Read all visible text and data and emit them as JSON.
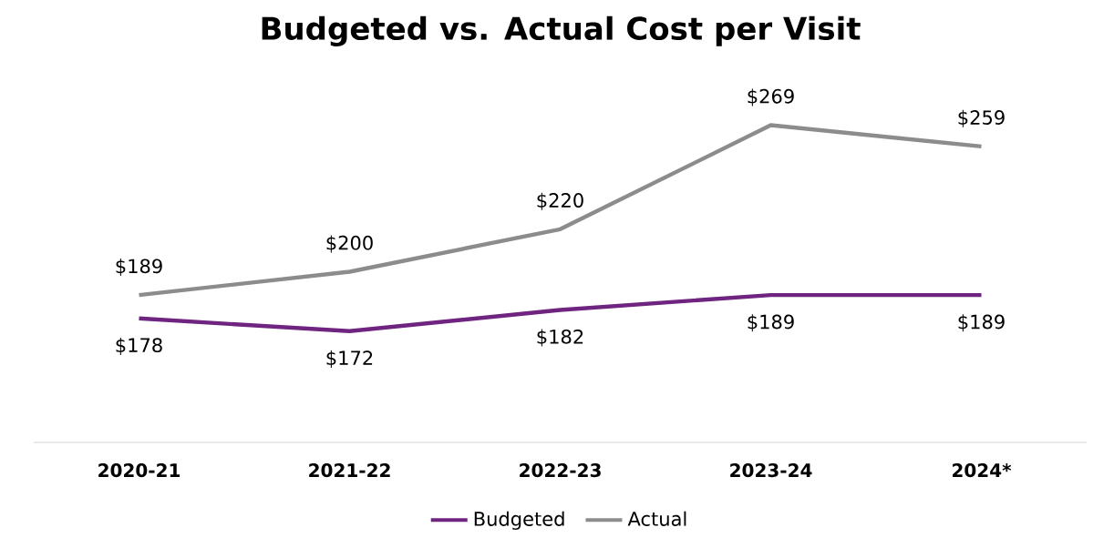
{
  "chart_data": {
    "type": "line",
    "title": "Budgeted vs. Actual Cost per Visit",
    "categories": [
      "2020-21",
      "2021-22",
      "2022-23",
      "2023-24",
      "2024*"
    ],
    "series": [
      {
        "name": "Budgeted",
        "color": "#6f2480",
        "values": [
          178,
          172,
          182,
          189,
          189
        ],
        "value_labels": [
          "$178",
          "$172",
          "$182",
          "$189",
          "$189"
        ]
      },
      {
        "name": "Actual",
        "color": "#8c8c8c",
        "values": [
          189,
          200,
          220,
          269,
          259
        ],
        "value_labels": [
          "$189",
          "$200",
          "$220",
          "$269",
          "$259"
        ]
      }
    ],
    "grid": false,
    "legend": "bottom",
    "marker": "none",
    "line_style": "solid"
  }
}
